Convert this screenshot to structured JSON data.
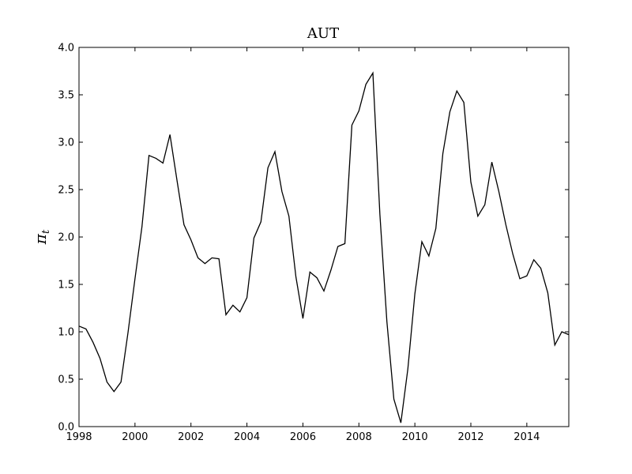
{
  "chart_data": {
    "type": "line",
    "title": "AUT",
    "xlabel": "",
    "ylabel_main": "π",
    "ylabel_sub": "t",
    "xlim": [
      1998,
      2015.5
    ],
    "ylim": [
      0.0,
      4.0
    ],
    "x_ticks": [
      1998,
      2000,
      2002,
      2004,
      2006,
      2008,
      2010,
      2012,
      2014
    ],
    "x_tick_labels": [
      "1998",
      "2000",
      "2002",
      "2004",
      "2006",
      "2008",
      "2010",
      "2012",
      "2014"
    ],
    "y_ticks": [
      0.0,
      0.5,
      1.0,
      1.5,
      2.0,
      2.5,
      3.0,
      3.5,
      4.0
    ],
    "y_tick_labels": [
      "0.0",
      "0.5",
      "1.0",
      "1.5",
      "2.0",
      "2.5",
      "3.0",
      "3.5",
      "4.0"
    ],
    "grid": false,
    "line_color": "#000000",
    "series": [
      {
        "x": [
          1998.0,
          1998.25,
          1998.5,
          1998.75,
          1999.0,
          1999.25,
          1999.5,
          1999.75,
          2000.0,
          2000.25,
          2000.5,
          2000.75,
          2001.0,
          2001.25,
          2001.5,
          2001.75,
          2002.0,
          2002.25,
          2002.5,
          2002.75,
          2003.0,
          2003.25,
          2003.5,
          2003.75,
          2004.0,
          2004.25,
          2004.5,
          2004.75,
          2005.0,
          2005.25,
          2005.5,
          2005.75,
          2006.0,
          2006.25,
          2006.5,
          2006.75,
          2007.0,
          2007.25,
          2007.5,
          2007.75,
          2008.0,
          2008.25,
          2008.5,
          2008.75,
          2009.0,
          2009.25,
          2009.5,
          2009.75,
          2010.0,
          2010.25,
          2010.5,
          2010.75,
          2011.0,
          2011.25,
          2011.5,
          2011.75,
          2012.0,
          2012.25,
          2012.5,
          2012.75,
          2013.0,
          2013.25,
          2013.5,
          2013.75,
          2014.0,
          2014.25,
          2014.5,
          2014.75,
          2015.0,
          2015.25,
          2015.5
        ],
        "values": [
          1.06,
          1.03,
          0.89,
          0.72,
          0.47,
          0.37,
          0.47,
          0.99,
          1.56,
          2.11,
          2.86,
          2.83,
          2.78,
          3.08,
          2.6,
          2.13,
          1.97,
          1.78,
          1.72,
          1.78,
          1.77,
          1.18,
          1.28,
          1.21,
          1.36,
          1.99,
          2.16,
          2.73,
          2.9,
          2.48,
          2.22,
          1.58,
          1.14,
          1.63,
          1.57,
          1.43,
          1.65,
          1.9,
          1.93,
          3.18,
          3.33,
          3.61,
          3.73,
          2.24,
          1.11,
          0.29,
          0.04,
          0.61,
          1.4,
          1.95,
          1.8,
          2.09,
          2.88,
          3.32,
          3.54,
          3.42,
          2.58,
          2.22,
          2.34,
          2.79,
          2.48,
          2.13,
          1.82,
          1.56,
          1.59,
          1.76,
          1.67,
          1.41,
          0.86,
          1.0,
          0.97
        ]
      }
    ]
  }
}
